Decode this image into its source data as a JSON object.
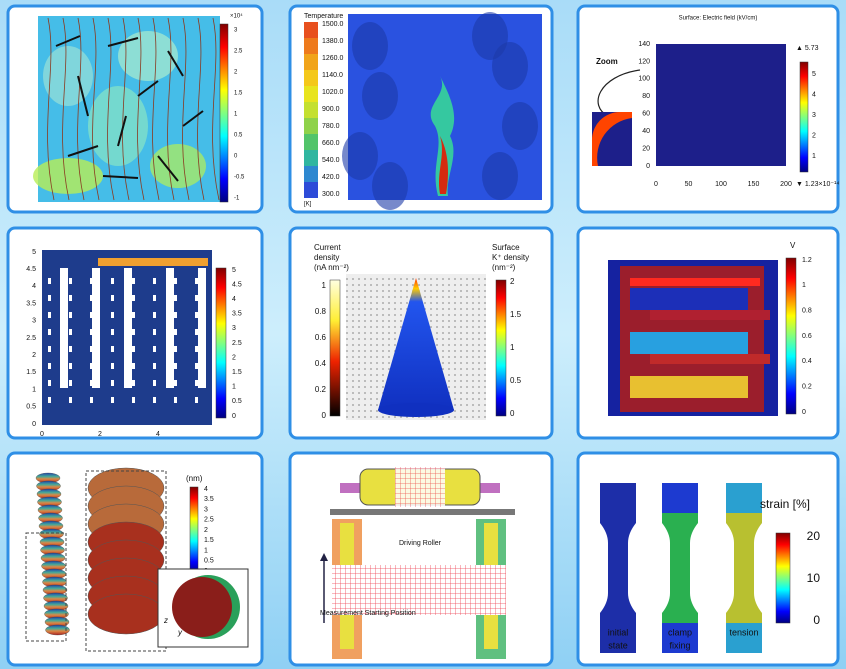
{
  "panels": [
    {
      "colorbar_exponent": "×10⁴",
      "colorbar_ticks": [
        "3",
        "2.5",
        "2",
        "1.5",
        "1",
        "0.5",
        "0",
        "-0.5",
        "-1"
      ]
    },
    {
      "colorbar_title": "Temperature",
      "colorbar_ticks": [
        "1500.0",
        "1380.0",
        "1260.0",
        "1140.0",
        "1020.0",
        "900.0",
        "780.0",
        "660.0",
        "540.0",
        "420.0",
        "300.0"
      ],
      "colorbar_unit": "[K]"
    },
    {
      "title": "Surface: Electric field (kV/cm)",
      "zoom_label": "Zoom",
      "y_ticks": [
        "140",
        "120",
        "100",
        "80",
        "60",
        "40",
        "20",
        "0"
      ],
      "x_ticks": [
        "0",
        "50",
        "100",
        "150",
        "200"
      ],
      "colorbar_ticks": [
        "5",
        "4",
        "3",
        "2",
        "1"
      ],
      "max_label": "▲ 5.73",
      "min_label": "▼ 1.23×10⁻¹⁴"
    },
    {
      "y_ticks": [
        "5",
        "4.5",
        "4",
        "3.5",
        "3",
        "2.5",
        "2",
        "1.5",
        "1",
        "0.5",
        "0"
      ],
      "x_ticks": [
        "0",
        "2",
        "4"
      ],
      "colorbar_ticks": [
        "5",
        "4.5",
        "4",
        "3.5",
        "3",
        "2.5",
        "2",
        "1.5",
        "1",
        "0.5",
        "0"
      ]
    },
    {
      "left_colorbar_title": [
        "Current",
        "density",
        "(nA nm⁻²)"
      ],
      "left_colorbar_ticks": [
        "1",
        "0.8",
        "0.6",
        "0.4",
        "0.2",
        "0"
      ],
      "right_colorbar_title": [
        "Surface",
        "K⁺ density",
        "(nm⁻²)"
      ],
      "right_colorbar_ticks": [
        "2",
        "1.5",
        "1",
        "0.5",
        "0"
      ]
    },
    {
      "colorbar_title": "V",
      "colorbar_ticks": [
        "1.2",
        "1",
        "0.8",
        "0.6",
        "0.4",
        "0.2",
        "0"
      ]
    },
    {
      "colorbar_title": "(nm)",
      "colorbar_ticks": [
        "4",
        "3.5",
        "3",
        "2.5",
        "2",
        "1.5",
        "1",
        "0.5",
        "0"
      ],
      "axis_z": "z",
      "axis_y": "y"
    },
    {
      "roller_label": "Driving Roller",
      "position_label": "Measurement Starting Position"
    },
    {
      "colorbar_title": "strain [%]",
      "colorbar_ticks": [
        "20",
        "10",
        "0"
      ],
      "captions": [
        [
          "initial",
          "state"
        ],
        [
          "clamp",
          "fixing"
        ],
        [
          "tension"
        ]
      ]
    }
  ]
}
